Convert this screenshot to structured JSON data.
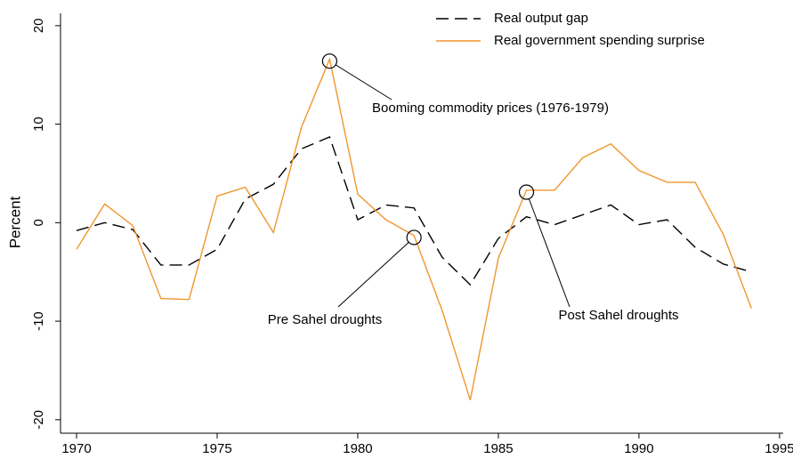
{
  "chart_data": {
    "type": "line",
    "y_label": "Percent",
    "x": [
      1970,
      1971,
      1972,
      1973,
      1974,
      1975,
      1976,
      1977,
      1978,
      1979,
      1980,
      1981,
      1982,
      1983,
      1984,
      1985,
      1986,
      1987,
      1988,
      1989,
      1990,
      1991,
      1992,
      1993,
      1994
    ],
    "series": [
      {
        "name": "Real output gap",
        "color": "#000000",
        "dash": true,
        "values": [
          -0.8,
          0,
          -0.7,
          -4.3,
          -4.3,
          -2.7,
          2.4,
          3.9,
          7.5,
          8.7,
          0.3,
          1.8,
          1.5,
          -3.5,
          -6.3,
          -1.6,
          0.6,
          -0.2,
          0.8,
          1.8,
          -0.2,
          0.3,
          -2.5,
          -4.2,
          -5.0
        ]
      },
      {
        "name": "Real government spending  surprise",
        "color": "#f0962e",
        "dash": false,
        "values": [
          -2.7,
          1.9,
          -0.3,
          -7.7,
          -7.8,
          2.7,
          3.6,
          -1.0,
          9.7,
          16.6,
          2.9,
          0.3,
          -1.3,
          -8.9,
          -18.0,
          -3.6,
          3.3,
          3.3,
          6.6,
          8.0,
          5.3,
          4.1,
          4.1,
          -1.2,
          -8.7
        ]
      }
    ],
    "annotations": [
      {
        "text": "Booming commodity prices (1976-1979)",
        "x": 1979,
        "y": 16.4
      },
      {
        "text": "Pre Sahel droughts",
        "x": 1982,
        "y": -1.5
      },
      {
        "text": "Post Sahel droughts",
        "x": 1986,
        "y": 3.1
      }
    ],
    "xlim": [
      1969.43,
      1995.13
    ],
    "xticks": [
      1970,
      1975,
      1980,
      1985,
      1990,
      1995
    ],
    "ylim": [
      -21.37,
      21.25
    ],
    "yticks": [
      -20,
      -10,
      0,
      10,
      20
    ],
    "legend": "top-right"
  }
}
